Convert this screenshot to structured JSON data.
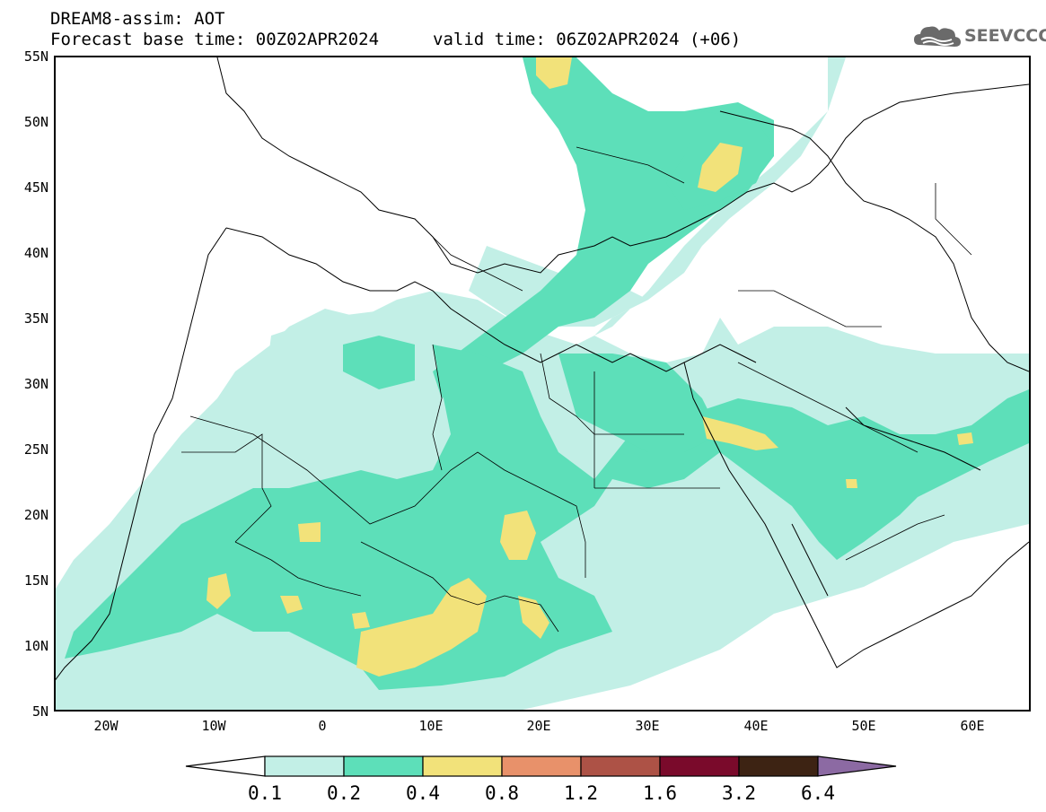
{
  "header": {
    "title": "DREAM8-assim: AOT",
    "base_time": "Forecast base time: 00Z02APR2024",
    "valid_time": "valid time: 06Z02APR2024 (+06)"
  },
  "logo": {
    "text": "SEEVCCC",
    "icon": "cloud-logo-icon"
  },
  "map": {
    "variable": "Aerosol optical thickness",
    "lon_range": [
      -25,
      65
    ],
    "lat_range": [
      5,
      55
    ],
    "lat_labels": [
      "55N",
      "50N",
      "45N",
      "40N",
      "35N",
      "30N",
      "25N",
      "20N",
      "15N",
      "10N",
      "5N"
    ],
    "lon_labels": [
      "20W",
      "10W",
      "0",
      "10E",
      "20E",
      "30E",
      "40E",
      "50E",
      "60E"
    ]
  },
  "colorbar": {
    "labels": [
      "0.1",
      "0.2",
      "0.4",
      "0.8",
      "1.2",
      "1.6",
      "3.2",
      "6.4"
    ],
    "colors": [
      "#ffffff",
      "#c2efe6",
      "#5ddfb9",
      "#f2e27a",
      "#e8916a",
      "#ad5246",
      "#7a0a2b",
      "#3d2313",
      "#8c6aa3"
    ]
  }
}
